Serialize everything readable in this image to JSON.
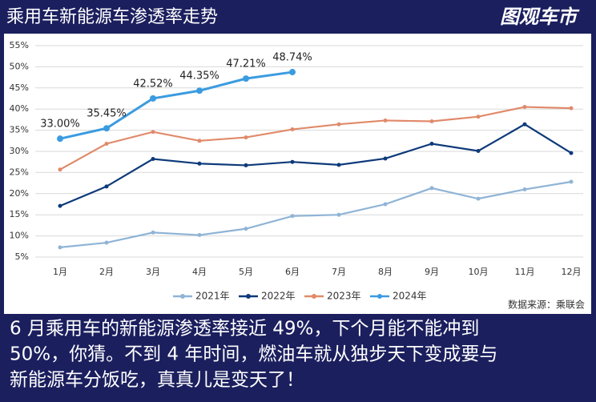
{
  "title": "乘用车新能源车渗透率走势",
  "logo": "图观车市",
  "chart_data": {
    "type": "line",
    "categories": [
      "1月",
      "2月",
      "3月",
      "4月",
      "5月",
      "6月",
      "7月",
      "8月",
      "9月",
      "10月",
      "11月",
      "12月"
    ],
    "series": [
      {
        "name": "2021年",
        "color": "#8fb4d6",
        "values": [
          7.3,
          8.4,
          10.8,
          10.2,
          11.7,
          14.7,
          15.0,
          17.5,
          21.3,
          18.8,
          21.0,
          22.8
        ]
      },
      {
        "name": "2022年",
        "color": "#0d3a7a",
        "values": [
          17.1,
          21.7,
          28.2,
          27.1,
          26.7,
          27.5,
          26.8,
          28.3,
          31.8,
          30.1,
          36.4,
          29.6
        ]
      },
      {
        "name": "2023年",
        "color": "#e08a6a",
        "values": [
          25.7,
          31.8,
          34.6,
          32.5,
          33.3,
          35.2,
          36.4,
          37.3,
          37.1,
          38.2,
          40.5,
          40.2
        ]
      },
      {
        "name": "2024年",
        "color": "#3b9be0",
        "values": [
          33.0,
          35.45,
          42.52,
          44.35,
          47.21,
          48.74,
          null,
          null,
          null,
          null,
          null,
          null
        ],
        "value_labels": [
          "33.00%",
          "35.45%",
          "42.52%",
          "44.35%",
          "47.21%",
          "48.74%",
          null,
          null,
          null,
          null,
          null,
          null
        ]
      }
    ],
    "ylim": [
      5,
      55
    ],
    "yticks": [
      {
        "value": 5,
        "label": "5%"
      },
      {
        "value": 10,
        "label": "10%"
      },
      {
        "value": 15,
        "label": "15%"
      },
      {
        "value": 20,
        "label": "20%"
      },
      {
        "value": 25,
        "label": "25%"
      },
      {
        "value": 30,
        "label": "30%"
      },
      {
        "value": 35,
        "label": "35%"
      },
      {
        "value": 40,
        "label": "40%"
      },
      {
        "value": 45,
        "label": "45%"
      },
      {
        "value": 50,
        "label": "50%"
      },
      {
        "value": 55,
        "label": "55%"
      }
    ],
    "grid": true,
    "legend": "bottom",
    "source": "数据来源：乘联会"
  },
  "caption": [
    "6 月乘用车的新能源渗透率接近 49%，下个月能不能冲到",
    "50%，你猜。不到 4 年时间，燃油车就从独步天下变成要与",
    "新能源车分饭吃，真真儿是变天了！"
  ]
}
